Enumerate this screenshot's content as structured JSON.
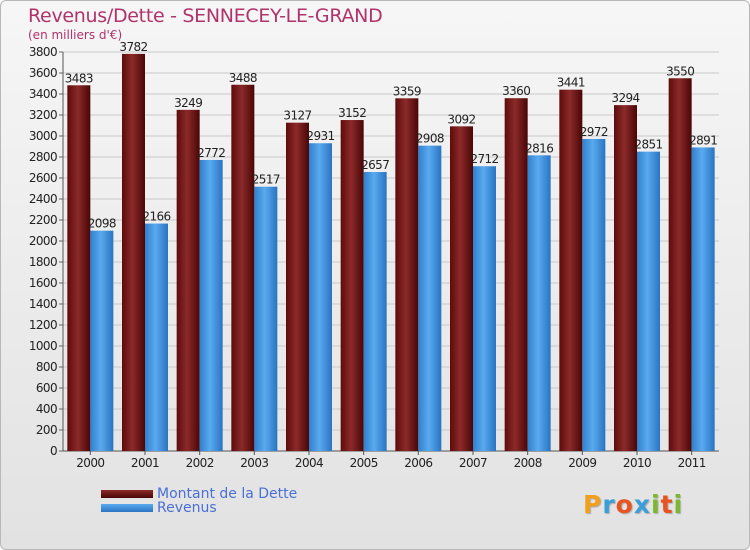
{
  "title": "Revenus/Dette - SENNECEY-LE-GRAND",
  "subtitle": "(en milliers d'€)",
  "logo_letters": [
    "P",
    "r",
    "o",
    "x",
    "i",
    "t",
    "i"
  ],
  "colors": {
    "title": "#b0336b",
    "dette": "#7a1a1a",
    "revenus": "#3a8fdc",
    "legend_text": "#4a6fd6"
  },
  "chart_data": {
    "type": "bar",
    "title": "Revenus/Dette - SENNECEY-LE-GRAND",
    "ylabel": "(en milliers d'€)",
    "xlabel": "",
    "categories": [
      "2000",
      "2001",
      "2002",
      "2003",
      "2004",
      "2005",
      "2006",
      "2007",
      "2008",
      "2009",
      "2010",
      "2011"
    ],
    "series": [
      {
        "name": "Montant de la Dette",
        "values": [
          3483,
          3782,
          3249,
          3488,
          3127,
          3152,
          3359,
          3092,
          3360,
          3441,
          3294,
          3550
        ]
      },
      {
        "name": "Revenus",
        "values": [
          2098,
          2166,
          2772,
          2517,
          2931,
          2657,
          2908,
          2712,
          2816,
          2972,
          2851,
          2891
        ]
      }
    ],
    "ylim": [
      0,
      3800
    ],
    "yticks": [
      "0",
      "200",
      "400",
      "600",
      "800",
      "1000",
      "1200",
      "1400",
      "1600",
      "1800",
      "2000",
      "2200",
      "2400",
      "2600",
      "2800",
      "3000",
      "3200",
      "3400",
      "3600",
      "3800"
    ],
    "grid": true,
    "legend": "bottom-left"
  }
}
